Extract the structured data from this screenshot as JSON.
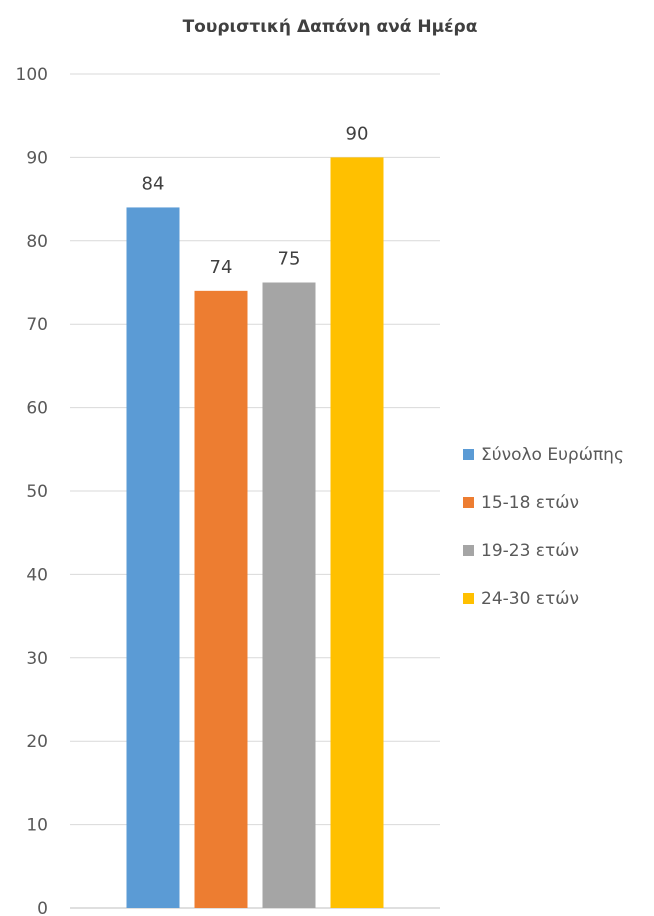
{
  "chart_data": {
    "type": "bar",
    "title": "Τουριστική Δαπάνη ανά Ημέρα",
    "xlabel": "",
    "ylabel": "",
    "ylim": [
      0,
      100
    ],
    "yticks": [
      0,
      10,
      20,
      30,
      40,
      50,
      60,
      70,
      80,
      90,
      100
    ],
    "grid": true,
    "legend_position": "right",
    "categories": [
      ""
    ],
    "series": [
      {
        "name": "Σύνολο Ευρώπης",
        "values": [
          84
        ],
        "color": "#5b9bd5"
      },
      {
        "name": "15-18 ετών",
        "values": [
          74
        ],
        "color": "#ed7d31"
      },
      {
        "name": "19-23 ετών",
        "values": [
          75
        ],
        "color": "#a5a5a5"
      },
      {
        "name": "24-30 ετών",
        "values": [
          90
        ],
        "color": "#ffc000"
      }
    ]
  }
}
